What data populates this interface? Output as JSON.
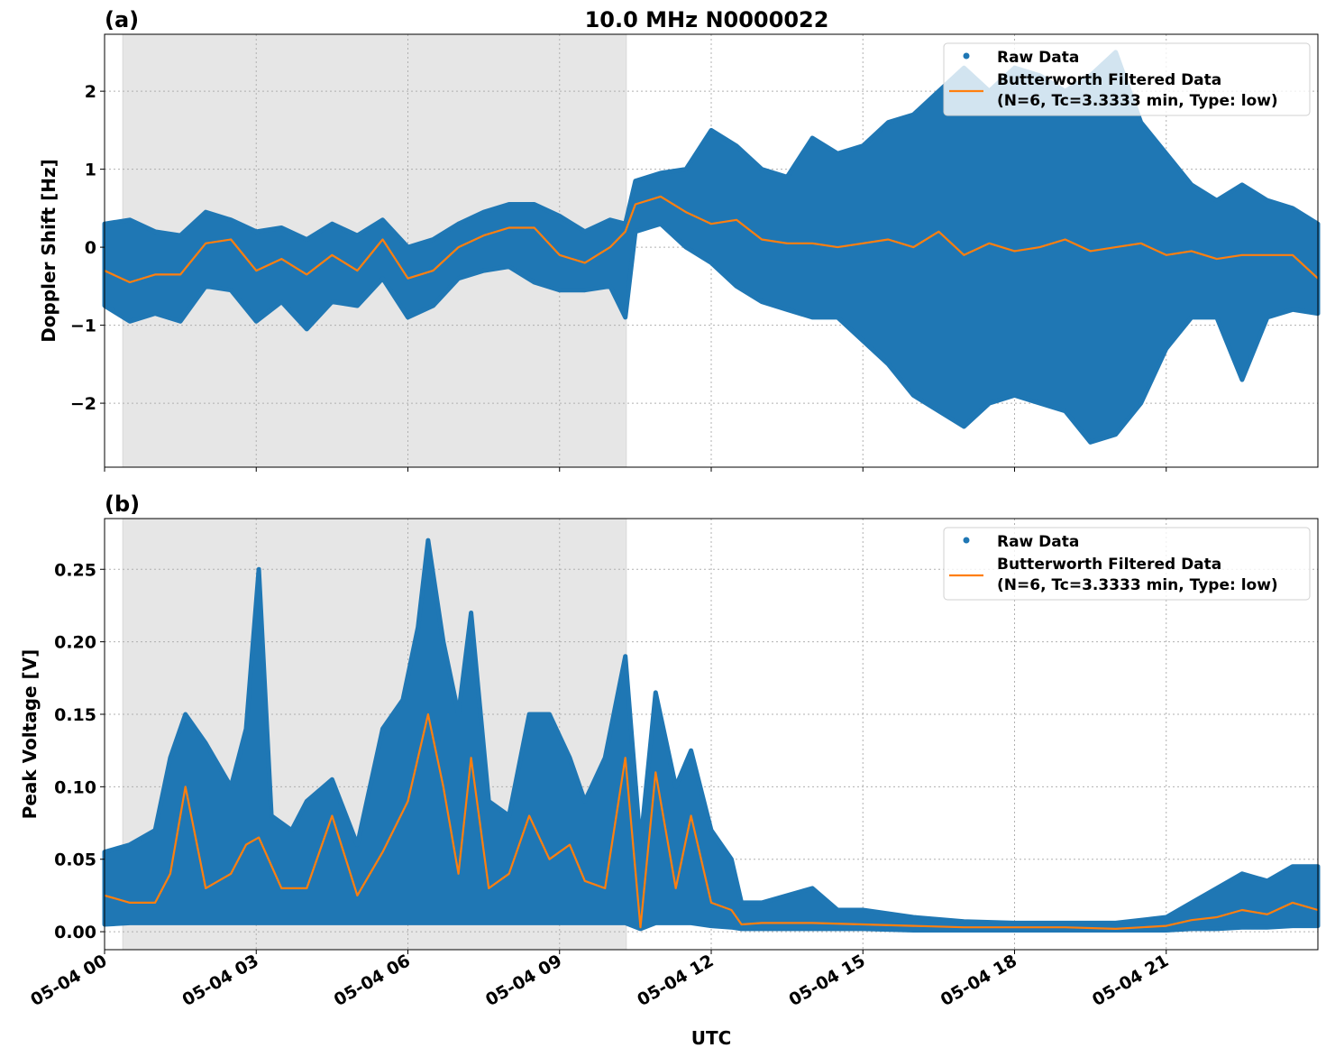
{
  "chart_data": [
    {
      "type": "scatter+line",
      "panel_label": "(a)",
      "title": "10.0 MHz N0000022",
      "xlabel": "",
      "ylabel": "Doppler Shift [Hz]",
      "x_unit": "hours UTC on 05-04",
      "xlim": [
        0,
        24
      ],
      "ylim": [
        -2.82,
        2.73
      ],
      "yticks": [
        2,
        1,
        0,
        -1,
        -2
      ],
      "ytick_labels": [
        "2",
        "1",
        "0",
        "−1",
        "−2"
      ],
      "xticks": [
        0,
        3,
        6,
        9,
        12,
        15,
        18,
        21
      ],
      "grid": true,
      "legend_placement": "top-right",
      "shaded_interval_hours": [
        0.36,
        10.32
      ],
      "legend": [
        "Raw Data",
        "Butterworth Filtered Data",
        "(N=6, Tc=3.3333 min, Type: low)"
      ],
      "series": [
        {
          "name": "Raw Data",
          "kind": "scatter",
          "color": "#1f77b4",
          "envelope_hour_min_max": [
            [
              0,
              -0.75,
              0.3
            ],
            [
              0.5,
              -0.95,
              0.35
            ],
            [
              1,
              -0.85,
              0.2
            ],
            [
              1.5,
              -0.95,
              0.15
            ],
            [
              2,
              -0.5,
              0.45
            ],
            [
              2.5,
              -0.55,
              0.35
            ],
            [
              3,
              -0.95,
              0.2
            ],
            [
              3.5,
              -0.7,
              0.25
            ],
            [
              4,
              -1.05,
              0.1
            ],
            [
              4.5,
              -0.7,
              0.3
            ],
            [
              5,
              -0.75,
              0.15
            ],
            [
              5.5,
              -0.4,
              0.35
            ],
            [
              6,
              -0.9,
              0.0
            ],
            [
              6.5,
              -0.75,
              0.1
            ],
            [
              7,
              -0.4,
              0.3
            ],
            [
              7.5,
              -0.3,
              0.45
            ],
            [
              8,
              -0.25,
              0.55
            ],
            [
              8.5,
              -0.45,
              0.55
            ],
            [
              9,
              -0.55,
              0.4
            ],
            [
              9.5,
              -0.55,
              0.2
            ],
            [
              10,
              -0.5,
              0.35
            ],
            [
              10.3,
              -0.9,
              0.3
            ],
            [
              10.5,
              0.2,
              0.85
            ],
            [
              11,
              0.3,
              0.95
            ],
            [
              11.5,
              0.0,
              1.0
            ],
            [
              12,
              -0.2,
              1.5
            ],
            [
              12.5,
              -0.5,
              1.3
            ],
            [
              13,
              -0.7,
              1.0
            ],
            [
              13.5,
              -0.8,
              0.9
            ],
            [
              14,
              -0.9,
              1.4
            ],
            [
              14.5,
              -0.9,
              1.2
            ],
            [
              15,
              -1.2,
              1.3
            ],
            [
              15.5,
              -1.5,
              1.6
            ],
            [
              16,
              -1.9,
              1.7
            ],
            [
              16.5,
              -2.1,
              2.0
            ],
            [
              17,
              -2.3,
              2.3
            ],
            [
              17.5,
              -2.0,
              2.0
            ],
            [
              18,
              -1.9,
              2.3
            ],
            [
              18.5,
              -2.0,
              2.2
            ],
            [
              19,
              -2.1,
              2.0
            ],
            [
              19.5,
              -2.5,
              2.2
            ],
            [
              20,
              -2.4,
              2.5
            ],
            [
              20.5,
              -2.0,
              1.6
            ],
            [
              21,
              -1.3,
              1.2
            ],
            [
              21.5,
              -0.9,
              0.8
            ],
            [
              22,
              -0.9,
              0.6
            ],
            [
              22.5,
              -1.7,
              0.8
            ],
            [
              23,
              -0.9,
              0.6
            ],
            [
              23.5,
              -0.8,
              0.5
            ],
            [
              24,
              -0.85,
              0.3
            ]
          ]
        },
        {
          "name": "Butterworth Filtered Data",
          "kind": "line",
          "color": "#ff7f0e",
          "hours": [
            0,
            0.5,
            1,
            1.5,
            2,
            2.5,
            3,
            3.5,
            4,
            4.5,
            5,
            5.5,
            6,
            6.5,
            7,
            7.5,
            8,
            8.5,
            9,
            9.5,
            10,
            10.3,
            10.5,
            11,
            11.5,
            12,
            12.5,
            13,
            13.5,
            14,
            14.5,
            15,
            15.5,
            16,
            16.5,
            17,
            17.5,
            18,
            18.5,
            19,
            19.5,
            20,
            20.5,
            21,
            21.5,
            22,
            22.5,
            23,
            23.5,
            24
          ],
          "values": [
            -0.3,
            -0.45,
            -0.35,
            -0.35,
            0.05,
            0.1,
            -0.3,
            -0.15,
            -0.35,
            -0.1,
            -0.3,
            0.1,
            -0.4,
            -0.3,
            0.0,
            0.15,
            0.25,
            0.25,
            -0.1,
            -0.2,
            0.0,
            0.2,
            0.55,
            0.65,
            0.45,
            0.3,
            0.35,
            0.1,
            0.05,
            0.05,
            0.0,
            0.05,
            0.1,
            0.0,
            0.2,
            -0.1,
            0.05,
            -0.05,
            0.0,
            0.1,
            -0.05,
            0.0,
            0.05,
            -0.1,
            -0.05,
            -0.15,
            -0.1,
            -0.1,
            -0.1,
            -0.4
          ]
        }
      ]
    },
    {
      "type": "scatter+line",
      "panel_label": "(b)",
      "title": "",
      "xlabel": "UTC",
      "ylabel": "Peak Voltage [V]",
      "x_unit": "hours UTC on 05-04",
      "xlim": [
        0,
        24
      ],
      "ylim": [
        -0.0124,
        0.285
      ],
      "yticks": [
        0.0,
        0.05,
        0.1,
        0.15,
        0.2,
        0.25
      ],
      "ytick_labels": [
        "0.00",
        "0.05",
        "0.10",
        "0.15",
        "0.20",
        "0.25"
      ],
      "xticks": [
        0,
        3,
        6,
        9,
        12,
        15,
        18,
        21
      ],
      "xtick_labels": [
        "05-04 00",
        "05-04 03",
        "05-04 06",
        "05-04 09",
        "05-04 12",
        "05-04 15",
        "05-04 18",
        "05-04 21"
      ],
      "grid": true,
      "legend_placement": "top-right",
      "shaded_interval_hours": [
        0.36,
        10.32
      ],
      "legend": [
        "Raw Data",
        "Butterworth Filtered Data",
        "(N=6, Tc=3.3333 min, Type: low)"
      ],
      "series": [
        {
          "name": "Raw Data",
          "kind": "scatter",
          "color": "#1f77b4",
          "envelope_hour_min_max": [
            [
              0,
              0.005,
              0.055
            ],
            [
              0.5,
              0.006,
              0.06
            ],
            [
              1,
              0.006,
              0.07
            ],
            [
              1.3,
              0.006,
              0.12
            ],
            [
              1.6,
              0.006,
              0.15
            ],
            [
              2,
              0.006,
              0.13
            ],
            [
              2.5,
              0.006,
              0.1
            ],
            [
              2.8,
              0.006,
              0.14
            ],
            [
              3.05,
              0.006,
              0.25
            ],
            [
              3.3,
              0.006,
              0.08
            ],
            [
              3.7,
              0.006,
              0.07
            ],
            [
              4,
              0.006,
              0.09
            ],
            [
              4.5,
              0.006,
              0.105
            ],
            [
              5,
              0.006,
              0.06
            ],
            [
              5.5,
              0.006,
              0.14
            ],
            [
              5.9,
              0.006,
              0.16
            ],
            [
              6.2,
              0.006,
              0.21
            ],
            [
              6.4,
              0.006,
              0.27
            ],
            [
              6.7,
              0.006,
              0.2
            ],
            [
              7.0,
              0.006,
              0.15
            ],
            [
              7.25,
              0.006,
              0.22
            ],
            [
              7.6,
              0.006,
              0.09
            ],
            [
              8.0,
              0.006,
              0.08
            ],
            [
              8.4,
              0.006,
              0.15
            ],
            [
              8.8,
              0.006,
              0.15
            ],
            [
              9.2,
              0.006,
              0.12
            ],
            [
              9.5,
              0.006,
              0.09
            ],
            [
              9.9,
              0.006,
              0.12
            ],
            [
              10.3,
              0.006,
              0.19
            ],
            [
              10.6,
              0.002,
              0.06
            ],
            [
              10.9,
              0.006,
              0.165
            ],
            [
              11.3,
              0.006,
              0.1
            ],
            [
              11.6,
              0.006,
              0.125
            ],
            [
              12,
              0.004,
              0.07
            ],
            [
              12.4,
              0.003,
              0.05
            ],
            [
              12.6,
              0.002,
              0.02
            ],
            [
              13,
              0.002,
              0.02
            ],
            [
              14,
              0.002,
              0.03
            ],
            [
              14.5,
              0.002,
              0.015
            ],
            [
              15,
              0.002,
              0.015
            ],
            [
              16,
              0.001,
              0.01
            ],
            [
              17,
              0.001,
              0.007
            ],
            [
              18,
              0.001,
              0.006
            ],
            [
              19,
              0.001,
              0.006
            ],
            [
              20,
              0.001,
              0.006
            ],
            [
              21,
              0.001,
              0.01
            ],
            [
              21.5,
              0.002,
              0.02
            ],
            [
              22,
              0.002,
              0.03
            ],
            [
              22.5,
              0.003,
              0.04
            ],
            [
              23,
              0.003,
              0.035
            ],
            [
              23.5,
              0.004,
              0.045
            ],
            [
              24,
              0.004,
              0.045
            ]
          ]
        },
        {
          "name": "Butterworth Filtered Data",
          "kind": "line",
          "color": "#ff7f0e",
          "hours": [
            0,
            0.5,
            1,
            1.3,
            1.6,
            2,
            2.5,
            2.8,
            3.05,
            3.5,
            4,
            4.5,
            5,
            5.5,
            6,
            6.4,
            6.7,
            7,
            7.25,
            7.6,
            8,
            8.4,
            8.8,
            9.2,
            9.5,
            9.9,
            10.3,
            10.6,
            10.9,
            11.3,
            11.6,
            12,
            12.4,
            12.6,
            13,
            14,
            15,
            16,
            17,
            18,
            19,
            20,
            21,
            21.5,
            22,
            22.5,
            23,
            23.5,
            24
          ],
          "values": [
            0.025,
            0.02,
            0.02,
            0.04,
            0.1,
            0.03,
            0.04,
            0.06,
            0.065,
            0.03,
            0.03,
            0.08,
            0.025,
            0.055,
            0.09,
            0.15,
            0.1,
            0.04,
            0.12,
            0.03,
            0.04,
            0.08,
            0.05,
            0.06,
            0.035,
            0.03,
            0.12,
            0.003,
            0.11,
            0.03,
            0.08,
            0.02,
            0.015,
            0.005,
            0.006,
            0.006,
            0.005,
            0.004,
            0.003,
            0.003,
            0.003,
            0.002,
            0.004,
            0.008,
            0.01,
            0.015,
            0.012,
            0.02,
            0.015
          ]
        }
      ]
    }
  ]
}
